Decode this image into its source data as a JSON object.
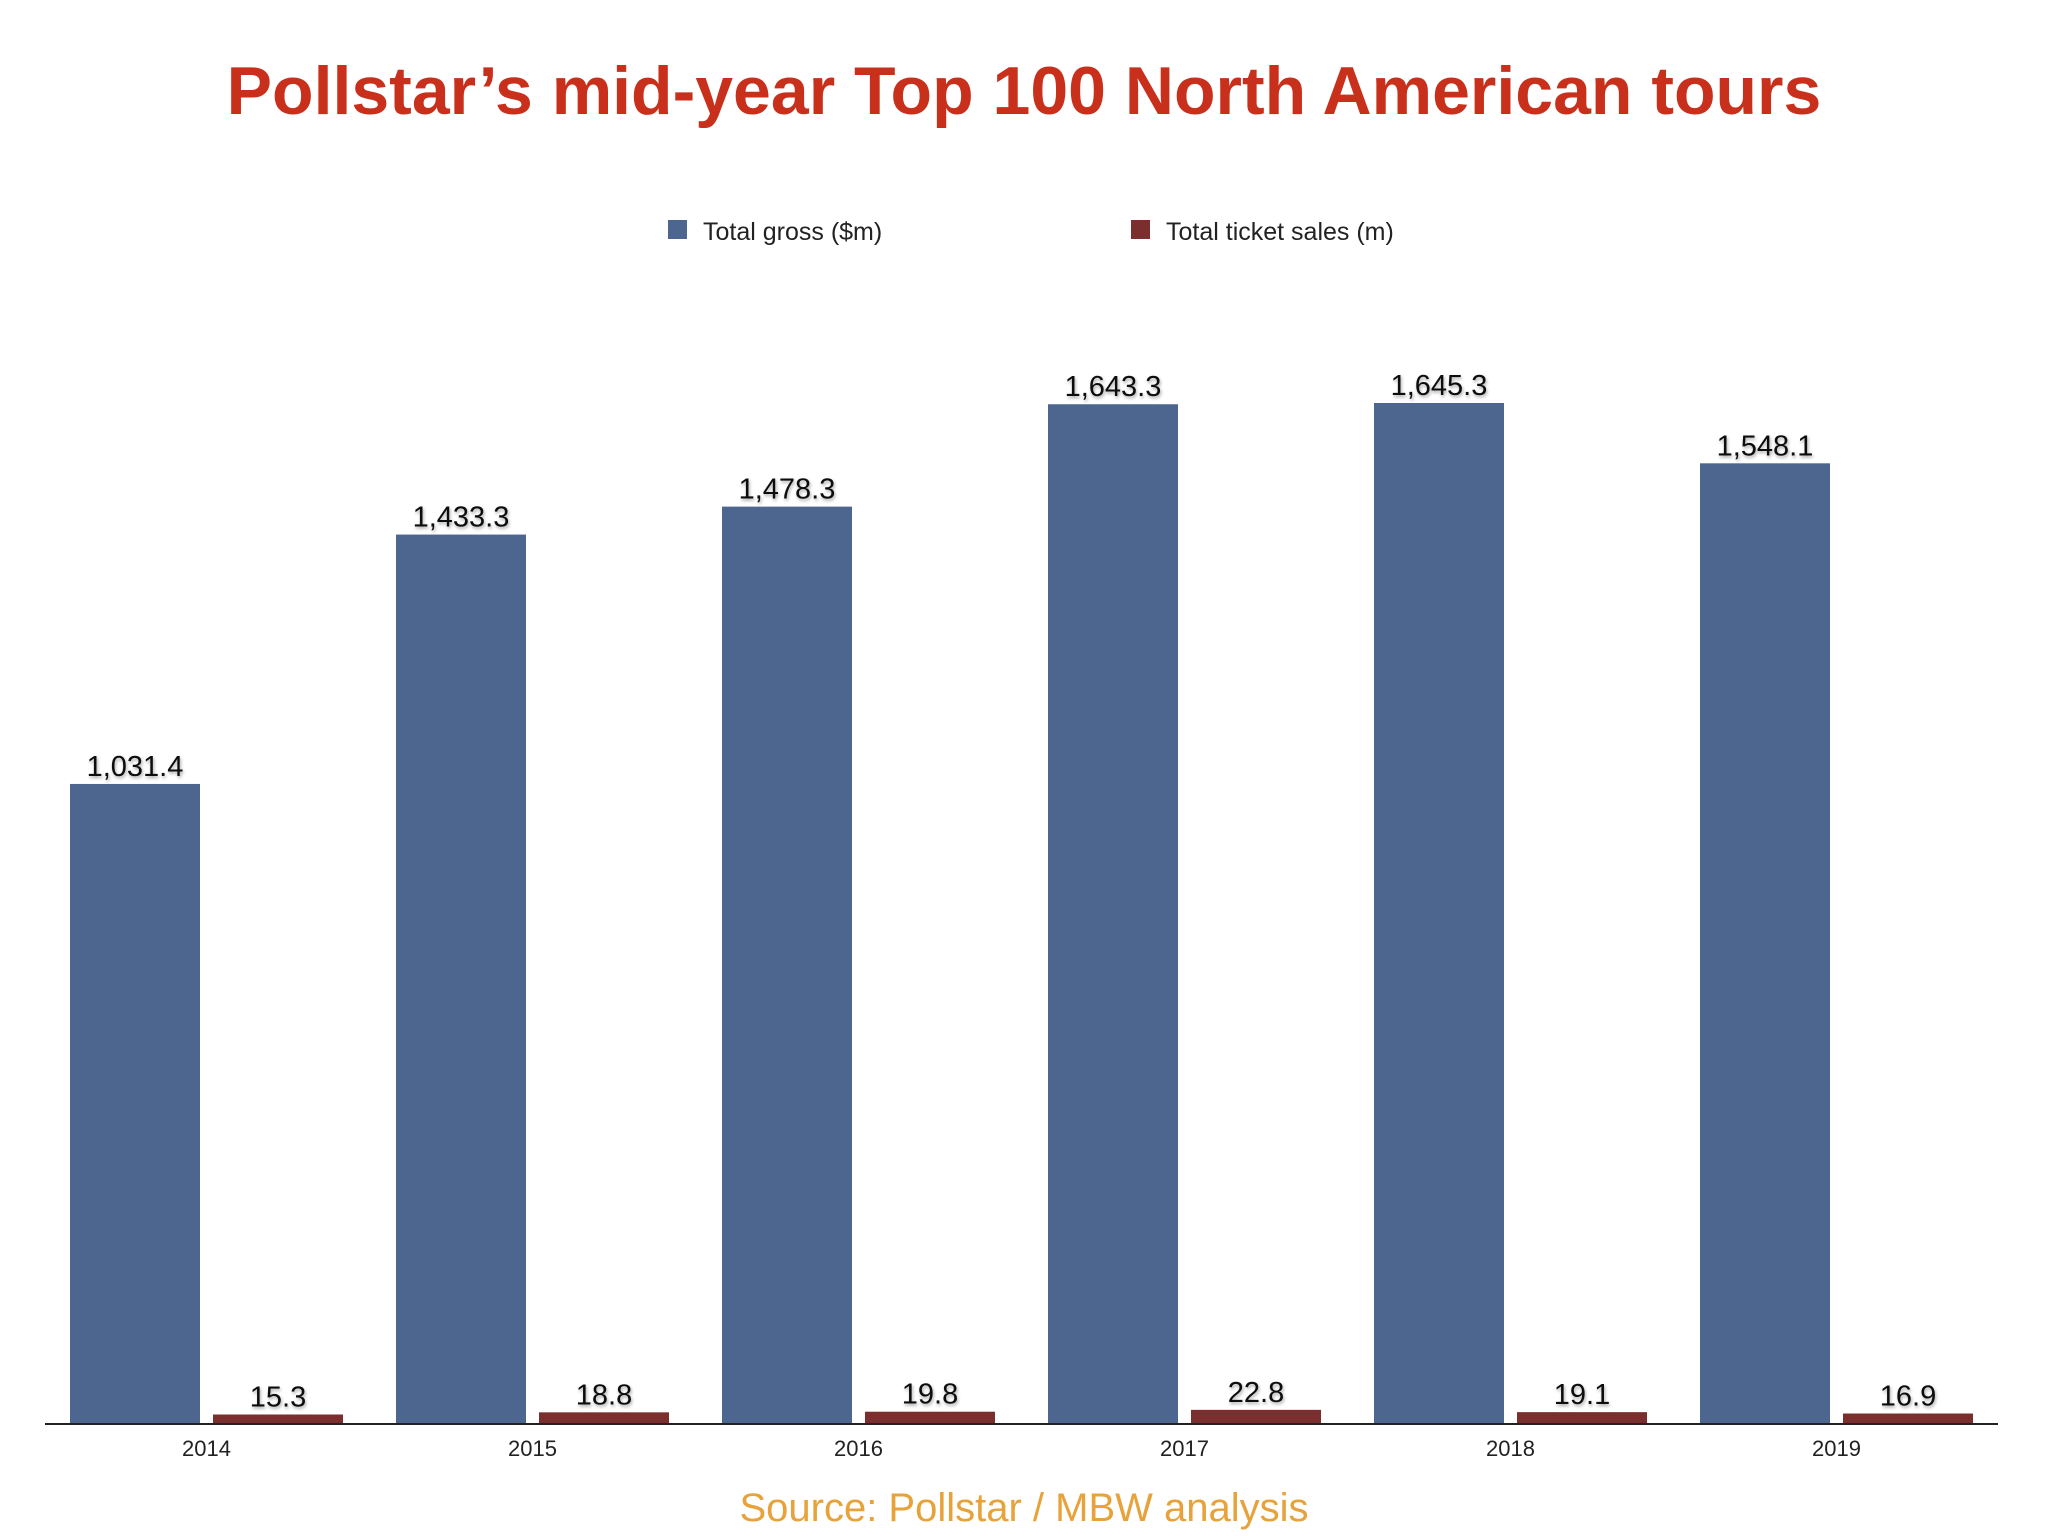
{
  "title": "Pollstar’s mid-year Top 100 North American tours",
  "source": "Source: Pollstar / MBW analysis",
  "colors": {
    "title": "#c8301c",
    "source": "#e7a23a",
    "gross": "#4c6690",
    "tickets": "#7a2e2e",
    "axis": "#222222"
  },
  "chart_data": {
    "type": "bar",
    "title": "Pollstar’s mid-year Top 100 North American tours",
    "xlabel": "",
    "ylabel": "",
    "legend_position": "top-center",
    "grid": false,
    "ylim": [
      0,
      1645.3
    ],
    "categories": [
      "2014",
      "2015",
      "2016",
      "2017",
      "2018",
      "2019"
    ],
    "series": [
      {
        "name": "Total gross ($m)",
        "values": [
          1031.4,
          1433.3,
          1478.3,
          1643.3,
          1645.3,
          1548.1
        ],
        "labels": [
          "1,031.4",
          "1,433.3",
          "1,478.3",
          "1,643.3",
          "1,645.3",
          "1,548.1"
        ]
      },
      {
        "name": "Total ticket sales (m)",
        "values": [
          15.3,
          18.8,
          19.8,
          22.8,
          19.1,
          16.9
        ],
        "labels": [
          "15.3",
          "18.8",
          "19.8",
          "22.8",
          "19.1",
          "16.9"
        ]
      }
    ]
  }
}
